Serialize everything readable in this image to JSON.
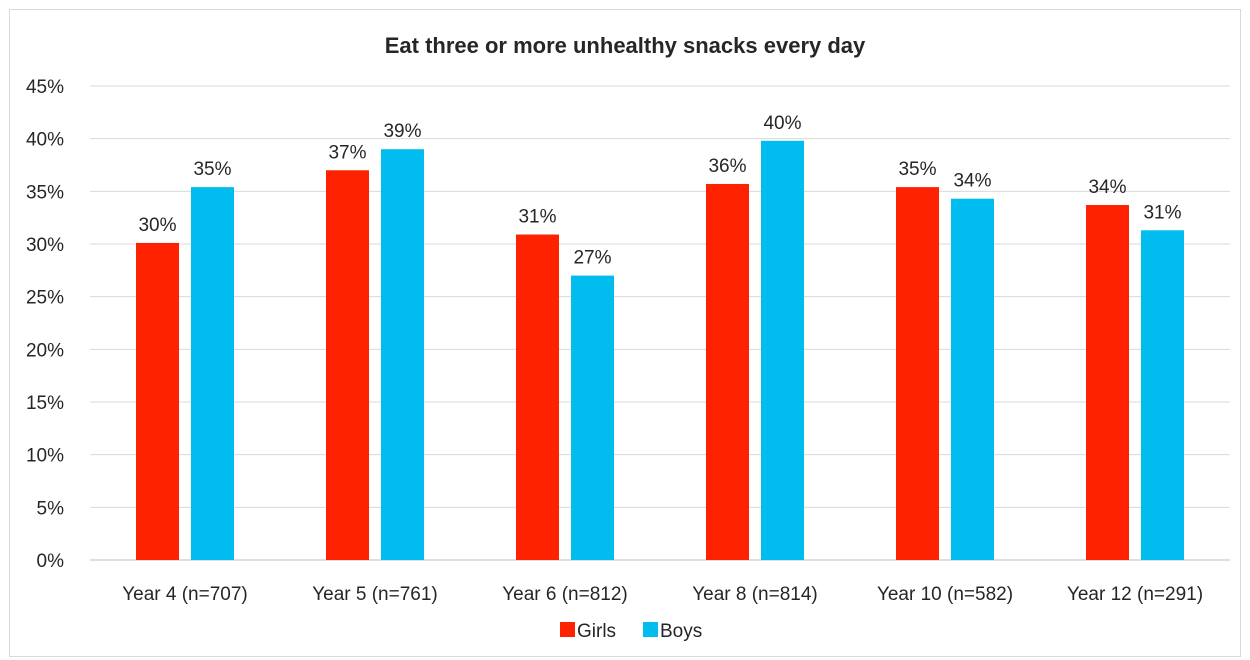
{
  "chart_data": {
    "type": "bar",
    "title": "Eat three or more unhealthy snacks every day",
    "xlabel": "",
    "ylabel": "",
    "ylim": [
      0,
      0.45
    ],
    "ytick_step": 0.05,
    "yticks": [
      "0%",
      "5%",
      "10%",
      "15%",
      "20%",
      "25%",
      "30%",
      "35%",
      "40%",
      "45%"
    ],
    "grid": true,
    "legend_position": "bottom",
    "categories": [
      "Year 4 (n=707)",
      "Year 5 (n=761)",
      "Year 6 (n=812)",
      "Year 8 (n=814)",
      "Year 10 (n=582)",
      "Year 12 (n=291)"
    ],
    "series": [
      {
        "name": "Girls",
        "color": "#ff2200",
        "values": [
          0.301,
          0.37,
          0.309,
          0.357,
          0.354,
          0.337
        ],
        "labels": [
          "30%",
          "37%",
          "31%",
          "36%",
          "35%",
          "34%"
        ]
      },
      {
        "name": "Boys",
        "color": "#00bcef",
        "values": [
          0.354,
          0.39,
          0.27,
          0.398,
          0.343,
          0.313
        ],
        "labels": [
          "35%",
          "39%",
          "27%",
          "40%",
          "34%",
          "31%"
        ]
      }
    ]
  }
}
